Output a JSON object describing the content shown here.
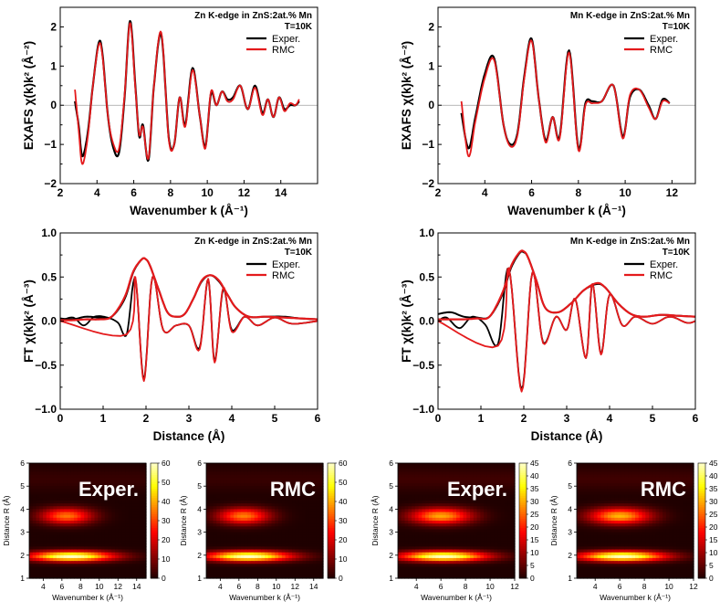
{
  "colors": {
    "exper": "#000000",
    "rmc": "#e41a1c",
    "zero_line": "#a0a0a0",
    "frame": "#000000"
  },
  "chart_data": [
    {
      "id": "zn_exafs",
      "type": "line",
      "title": "Zn K-edge in ZnS:2at.% Mn",
      "subtitle": "T=10K",
      "xlabel": "Wavenumber k (Å⁻¹)",
      "ylabel": "EXAFS χ(k)k² (Å⁻²)",
      "xlim": [
        2,
        16
      ],
      "ylim": [
        -2,
        2.5
      ],
      "xticks": [
        2,
        4,
        6,
        8,
        10,
        12,
        14
      ],
      "yticks": [
        -2,
        -1,
        0,
        1,
        2
      ],
      "legend": [
        "Exper.",
        "RMC"
      ],
      "zero_line": true,
      "series": [
        {
          "name": "Exper.",
          "x": [
            2.8,
            3.0,
            3.2,
            3.5,
            3.8,
            4.1,
            4.3,
            4.6,
            4.9,
            5.2,
            5.5,
            5.8,
            6.1,
            6.3,
            6.5,
            6.8,
            7.1,
            7.5,
            7.9,
            8.2,
            8.5,
            8.8,
            9.2,
            9.6,
            9.9,
            10.2,
            10.5,
            10.8,
            11.1,
            11.4,
            11.8,
            12.2,
            12.6,
            13.0,
            13.3,
            13.6,
            13.9,
            14.2,
            14.5,
            14.8,
            15.0
          ],
          "y": [
            0.1,
            -0.5,
            -1.3,
            -0.7,
            0.6,
            1.6,
            1.3,
            -0.3,
            -1.1,
            -1.2,
            0.2,
            2.15,
            0.4,
            -0.8,
            -0.5,
            -1.4,
            0.5,
            1.8,
            -0.8,
            -1.0,
            0.2,
            -0.5,
            0.95,
            -0.3,
            -1.05,
            0.3,
            0.0,
            0.35,
            0.15,
            0.2,
            0.5,
            -0.1,
            0.5,
            -0.2,
            0.15,
            -0.3,
            0.2,
            -0.1,
            0.0,
            0.0,
            0.1
          ]
        },
        {
          "name": "RMC",
          "x": [
            2.8,
            3.0,
            3.2,
            3.5,
            3.8,
            4.1,
            4.3,
            4.6,
            4.9,
            5.2,
            5.5,
            5.8,
            6.1,
            6.3,
            6.5,
            6.8,
            7.1,
            7.5,
            7.9,
            8.2,
            8.5,
            8.8,
            9.2,
            9.6,
            9.9,
            10.2,
            10.5,
            10.8,
            11.1,
            11.4,
            11.8,
            12.2,
            12.6,
            13.0,
            13.3,
            13.6,
            13.9,
            14.2,
            14.5,
            14.8,
            15.0
          ],
          "y": [
            0.4,
            -0.6,
            -1.5,
            -0.8,
            0.6,
            1.55,
            1.25,
            -0.3,
            -1.0,
            -1.1,
            0.25,
            2.1,
            0.35,
            -0.75,
            -0.55,
            -1.35,
            0.5,
            1.85,
            -0.85,
            -1.0,
            0.2,
            -0.55,
            0.9,
            -0.3,
            -1.1,
            0.35,
            0.0,
            0.35,
            0.1,
            0.15,
            0.5,
            -0.1,
            0.45,
            -0.25,
            0.15,
            -0.3,
            0.2,
            -0.15,
            0.05,
            0.0,
            0.15
          ]
        }
      ]
    },
    {
      "id": "mn_exafs",
      "type": "line",
      "title": "Mn K-edge in ZnS:2at.% Mn",
      "subtitle": "T=10K",
      "xlabel": "Wavenumber k (Å⁻¹)",
      "ylabel": "EXAFS χ(k)k² (Å⁻²)",
      "xlim": [
        2,
        13
      ],
      "ylim": [
        -2,
        2.5
      ],
      "xticks": [
        2,
        4,
        6,
        8,
        10,
        12
      ],
      "yticks": [
        -2,
        -1,
        0,
        1,
        2
      ],
      "legend": [
        "Exper.",
        "RMC"
      ],
      "zero_line": true,
      "series": [
        {
          "name": "Exper.",
          "x": [
            3.0,
            3.3,
            3.6,
            4.0,
            4.4,
            4.8,
            5.1,
            5.4,
            5.7,
            6.0,
            6.3,
            6.6,
            6.9,
            7.2,
            7.6,
            8.0,
            8.3,
            8.6,
            9.0,
            9.5,
            9.9,
            10.2,
            10.6,
            11.0,
            11.3,
            11.6,
            11.9
          ],
          "y": [
            -0.2,
            -1.1,
            -0.3,
            0.8,
            1.2,
            -0.5,
            -1.0,
            -0.7,
            0.8,
            1.7,
            0.2,
            -0.9,
            -0.3,
            -0.8,
            1.4,
            -1.1,
            0.05,
            0.1,
            0.1,
            0.5,
            -0.8,
            0.2,
            0.4,
            0.0,
            -0.35,
            0.15,
            0.05
          ]
        },
        {
          "name": "RMC",
          "x": [
            3.0,
            3.3,
            3.6,
            4.0,
            4.4,
            4.8,
            5.1,
            5.4,
            5.7,
            6.0,
            6.3,
            6.6,
            6.9,
            7.2,
            7.6,
            8.0,
            8.3,
            8.6,
            9.0,
            9.5,
            9.9,
            10.2,
            10.6,
            11.0,
            11.3,
            11.6,
            11.9
          ],
          "y": [
            0.1,
            -1.3,
            -0.4,
            0.7,
            1.15,
            -0.5,
            -1.05,
            -0.75,
            0.75,
            1.65,
            0.2,
            -0.95,
            -0.3,
            -0.85,
            1.35,
            -1.15,
            0.0,
            0.05,
            0.1,
            0.5,
            -0.85,
            0.25,
            0.4,
            -0.05,
            -0.35,
            0.1,
            0.05
          ]
        }
      ]
    },
    {
      "id": "zn_ft",
      "type": "line",
      "title": "Zn K-edge in ZnS:2at.% Mn",
      "subtitle": "T=10K",
      "xlabel": "Distance (Å)",
      "ylabel": "FT χ(k)k² (Å⁻³)",
      "xlim": [
        0,
        6
      ],
      "ylim": [
        -1.0,
        1.0
      ],
      "xticks": [
        0,
        1,
        2,
        3,
        4,
        5,
        6
      ],
      "yticks": [
        -1.0,
        -0.5,
        0.0,
        0.5,
        1.0
      ],
      "legend": [
        "Exper.",
        "RMC"
      ],
      "zero_line": false,
      "envelope_exper": {
        "x": [
          0,
          0.3,
          0.6,
          0.9,
          1.2,
          1.5,
          1.7,
          1.9,
          2.0,
          2.1,
          2.3,
          2.5,
          2.7,
          2.9,
          3.1,
          3.3,
          3.5,
          3.7,
          3.9,
          4.1,
          4.4,
          4.8,
          5.2,
          5.6,
          6.0
        ],
        "y": [
          0.03,
          0.02,
          0.05,
          0.04,
          0.05,
          0.25,
          0.55,
          0.7,
          0.7,
          0.62,
          0.35,
          0.1,
          0.05,
          0.08,
          0.25,
          0.45,
          0.52,
          0.45,
          0.3,
          0.15,
          0.05,
          0.05,
          0.05,
          0.03,
          0.02
        ]
      },
      "envelope_rmc": {
        "x": [
          0,
          0.3,
          0.6,
          0.9,
          1.2,
          1.5,
          1.7,
          1.9,
          2.0,
          2.1,
          2.3,
          2.5,
          2.7,
          2.9,
          3.1,
          3.3,
          3.5,
          3.7,
          3.9,
          4.1,
          4.4,
          4.8,
          5.2,
          5.6,
          6.0
        ],
        "y": [
          0.01,
          0.01,
          0.02,
          0.02,
          0.05,
          0.27,
          0.56,
          0.7,
          0.7,
          0.62,
          0.35,
          0.1,
          0.05,
          0.08,
          0.25,
          0.46,
          0.52,
          0.46,
          0.3,
          0.15,
          0.05,
          0.05,
          0.04,
          0.03,
          0.02
        ]
      },
      "imag_rmc_extrema": {
        "x": [
          1.55,
          1.75,
          1.95,
          2.15,
          2.4,
          2.7,
          3.0,
          3.25,
          3.45,
          3.6,
          3.8,
          4.0,
          4.3,
          4.6,
          5.0,
          5.4
        ],
        "y": [
          -0.15,
          0.5,
          -0.68,
          0.5,
          -0.1,
          -0.05,
          -0.05,
          -0.32,
          0.48,
          -0.47,
          0.38,
          -0.12,
          0.05,
          -0.05,
          0.04,
          -0.03
        ]
      },
      "imag_exper_extrema": {
        "x": [
          0.3,
          0.55,
          0.8,
          1.1,
          1.35,
          1.55,
          1.75,
          1.95,
          2.15,
          2.4,
          2.7,
          3.0,
          3.25,
          3.45,
          3.6,
          3.8,
          4.0,
          4.3,
          4.6,
          5.0,
          5.4
        ],
        "y": [
          0.04,
          -0.05,
          0.05,
          0.04,
          -0.02,
          -0.15,
          0.48,
          -0.66,
          0.5,
          -0.1,
          -0.05,
          -0.05,
          -0.3,
          0.47,
          -0.45,
          0.36,
          -0.1,
          0.05,
          -0.05,
          0.04,
          -0.03
        ]
      }
    },
    {
      "id": "mn_ft",
      "type": "line",
      "title": "Mn K-edge in ZnS:2at.% Mn",
      "subtitle": "T=10K",
      "xlabel": "Distance (Å)",
      "ylabel": "FT χ(k)k² (Å⁻³)",
      "xlim": [
        0,
        6
      ],
      "ylim": [
        -1.0,
        1.0
      ],
      "xticks": [
        0,
        1,
        2,
        3,
        4,
        5,
        6
      ],
      "yticks": [
        -1.0,
        -0.5,
        0.0,
        0.5,
        1.0
      ],
      "legend": [
        "Exper.",
        "RMC"
      ],
      "zero_line": false,
      "envelope_exper": {
        "x": [
          0,
          0.3,
          0.6,
          0.9,
          1.2,
          1.5,
          1.7,
          1.9,
          2.0,
          2.1,
          2.3,
          2.5,
          2.8,
          3.1,
          3.4,
          3.7,
          3.9,
          4.2,
          4.5,
          4.8,
          5.2,
          5.6,
          6.0
        ],
        "y": [
          0.08,
          0.1,
          0.05,
          0.04,
          0.05,
          0.3,
          0.6,
          0.77,
          0.78,
          0.72,
          0.45,
          0.15,
          0.1,
          0.2,
          0.35,
          0.42,
          0.38,
          0.2,
          0.08,
          0.05,
          0.07,
          0.06,
          0.05
        ]
      },
      "envelope_rmc": {
        "x": [
          0,
          0.3,
          0.6,
          0.9,
          1.2,
          1.5,
          1.7,
          1.9,
          2.0,
          2.1,
          2.3,
          2.5,
          2.8,
          3.1,
          3.4,
          3.7,
          3.9,
          4.2,
          4.5,
          4.8,
          5.2,
          5.6,
          6.0
        ],
        "y": [
          0.02,
          0.02,
          0.02,
          0.03,
          0.05,
          0.32,
          0.62,
          0.78,
          0.79,
          0.72,
          0.45,
          0.15,
          0.1,
          0.2,
          0.35,
          0.43,
          0.38,
          0.2,
          0.08,
          0.05,
          0.07,
          0.06,
          0.05
        ]
      },
      "imag_rmc_extrema": {
        "x": [
          1.4,
          1.65,
          1.95,
          2.2,
          2.45,
          2.75,
          3.0,
          3.2,
          3.45,
          3.6,
          3.8,
          4.0,
          4.3,
          4.6,
          5.0,
          5.4,
          5.8
        ],
        "y": [
          -0.28,
          0.6,
          -0.8,
          0.55,
          -0.25,
          0.05,
          -0.1,
          0.25,
          -0.42,
          0.42,
          -0.38,
          0.3,
          -0.05,
          0.05,
          -0.03,
          0.05,
          -0.02
        ]
      },
      "imag_exper_extrema": {
        "x": [
          0.2,
          0.5,
          0.8,
          1.1,
          1.4,
          1.65,
          1.95,
          2.2,
          2.45,
          2.75,
          3.0,
          3.2,
          3.45,
          3.6,
          3.8,
          4.0,
          4.3,
          4.6,
          5.0,
          5.4,
          5.8
        ],
        "y": [
          0.04,
          -0.08,
          0.05,
          -0.04,
          -0.26,
          0.6,
          -0.78,
          0.55,
          -0.24,
          0.05,
          -0.1,
          0.25,
          -0.42,
          0.42,
          -0.37,
          0.3,
          -0.05,
          0.05,
          -0.03,
          0.05,
          -0.02
        ]
      }
    },
    {
      "id": "zn_wt_exper",
      "type": "heatmap",
      "label": "Exper.",
      "xlabel": "Wavenumber k (Å⁻¹)",
      "ylabel": "Distance R (Å)",
      "xlim": [
        2.5,
        15
      ],
      "ylim": [
        1,
        6
      ],
      "xticks": [
        4,
        6,
        8,
        10,
        12,
        14
      ],
      "yticks": [
        1,
        2,
        3,
        4,
        5,
        6
      ],
      "colorbar": {
        "min": 0,
        "max": 60,
        "ticks": [
          0,
          10,
          20,
          30,
          40,
          50,
          60
        ]
      },
      "features": [
        {
          "center_k": 7.0,
          "center_R": 1.95,
          "spread_k": 4.5,
          "spread_R": 0.22,
          "intensity": 60
        },
        {
          "center_k": 6.5,
          "center_R": 3.7,
          "spread_k": 2.8,
          "spread_R": 0.35,
          "intensity": 35
        }
      ]
    },
    {
      "id": "zn_wt_rmc",
      "type": "heatmap",
      "label": "RMC",
      "xlabel": "Wavenumber k (Å⁻¹)",
      "ylabel": "Distance R (Å)",
      "xlim": [
        2.5,
        15
      ],
      "ylim": [
        1,
        6
      ],
      "xticks": [
        4,
        6,
        8,
        10,
        12,
        14
      ],
      "yticks": [
        1,
        2,
        3,
        4,
        5,
        6
      ],
      "colorbar": {
        "min": 0,
        "max": 60,
        "ticks": [
          0,
          10,
          20,
          30,
          40,
          50,
          60
        ]
      },
      "features": [
        {
          "center_k": 7.0,
          "center_R": 1.95,
          "spread_k": 4.5,
          "spread_R": 0.22,
          "intensity": 60
        },
        {
          "center_k": 6.5,
          "center_R": 3.7,
          "spread_k": 2.8,
          "spread_R": 0.35,
          "intensity": 36
        }
      ]
    },
    {
      "id": "mn_wt_exper",
      "type": "heatmap",
      "label": "Exper.",
      "xlabel": "Wavenumber k (Å⁻¹)",
      "ylabel": "Distance R (Å)",
      "xlim": [
        2.5,
        12
      ],
      "ylim": [
        1,
        6
      ],
      "xticks": [
        4,
        6,
        8,
        10,
        12
      ],
      "yticks": [
        1,
        2,
        3,
        4,
        5,
        6
      ],
      "colorbar": {
        "min": 0,
        "max": 45,
        "ticks": [
          0,
          5,
          10,
          15,
          20,
          25,
          30,
          35,
          40,
          45
        ]
      },
      "features": [
        {
          "center_k": 6.2,
          "center_R": 1.95,
          "spread_k": 3.5,
          "spread_R": 0.22,
          "intensity": 45
        },
        {
          "center_k": 6.0,
          "center_R": 3.7,
          "spread_k": 2.5,
          "spread_R": 0.35,
          "intensity": 30
        }
      ]
    },
    {
      "id": "mn_wt_rmc",
      "type": "heatmap",
      "label": "RMC",
      "xlabel": "Wavenumber k (Å⁻¹)",
      "ylabel": "Distance R (Å)",
      "xlim": [
        2.5,
        12
      ],
      "ylim": [
        1,
        6
      ],
      "xticks": [
        4,
        6,
        8,
        10,
        12
      ],
      "yticks": [
        1,
        2,
        3,
        4,
        5,
        6
      ],
      "colorbar": {
        "min": 0,
        "max": 45,
        "ticks": [
          0,
          5,
          10,
          15,
          20,
          25,
          30,
          35,
          40,
          45
        ]
      },
      "features": [
        {
          "center_k": 6.2,
          "center_R": 1.95,
          "spread_k": 3.5,
          "spread_R": 0.22,
          "intensity": 45
        },
        {
          "center_k": 6.0,
          "center_R": 3.7,
          "spread_k": 2.5,
          "spread_R": 0.35,
          "intensity": 31
        }
      ]
    }
  ]
}
